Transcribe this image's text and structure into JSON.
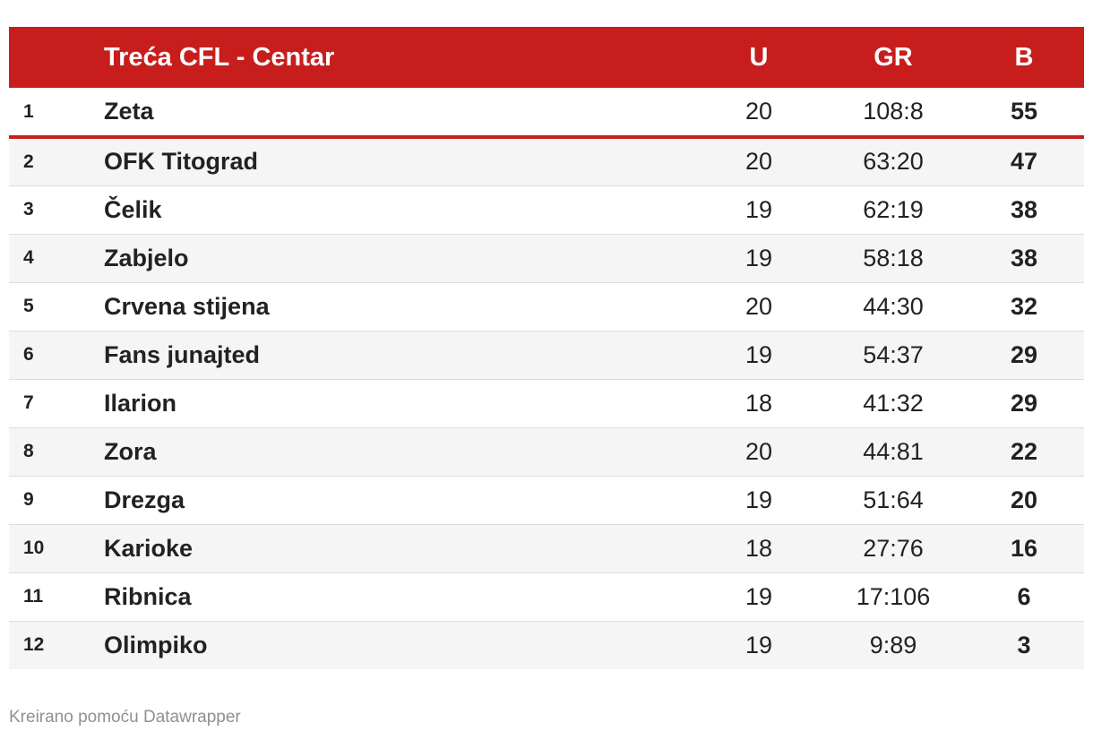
{
  "header": {
    "title": "Trećа CFL - Centar",
    "col_u": "U",
    "col_gr": "GR",
    "col_b": "B"
  },
  "rows": [
    {
      "rank": "1",
      "team": "Zeta",
      "u": "20",
      "gr": "108:8",
      "b": "55"
    },
    {
      "rank": "2",
      "team": "OFK Titograd",
      "u": "20",
      "gr": "63:20",
      "b": "47"
    },
    {
      "rank": "3",
      "team": "Čelik",
      "u": "19",
      "gr": "62:19",
      "b": "38"
    },
    {
      "rank": "4",
      "team": "Zabjelo",
      "u": "19",
      "gr": "58:18",
      "b": "38"
    },
    {
      "rank": "5",
      "team": "Crvena stijena",
      "u": "20",
      "gr": "44:30",
      "b": "32"
    },
    {
      "rank": "6",
      "team": "Fans junajted",
      "u": "19",
      "gr": "54:37",
      "b": "29"
    },
    {
      "rank": "7",
      "team": "Ilarion",
      "u": "18",
      "gr": "41:32",
      "b": "29"
    },
    {
      "rank": "8",
      "team": "Zora",
      "u": "20",
      "gr": "44:81",
      "b": "22"
    },
    {
      "rank": "9",
      "team": "Drezga",
      "u": "19",
      "gr": "51:64",
      "b": "20"
    },
    {
      "rank": "10",
      "team": "Karioke",
      "u": "18",
      "gr": "27:76",
      "b": "16"
    },
    {
      "rank": "11",
      "team": "Ribnica",
      "u": "19",
      "gr": "17:106",
      "b": "6"
    },
    {
      "rank": "12",
      "team": "Olimpiko",
      "u": "19",
      "gr": "9:89",
      "b": "3"
    }
  ],
  "footer": {
    "credit": "Kreirano pomoću Datawrapper"
  },
  "colors": {
    "header_bg": "#c71e1d",
    "header_text": "#ffffff",
    "leader_divider": "#c71e1d",
    "row_alt_bg": "#f5f5f5"
  }
}
